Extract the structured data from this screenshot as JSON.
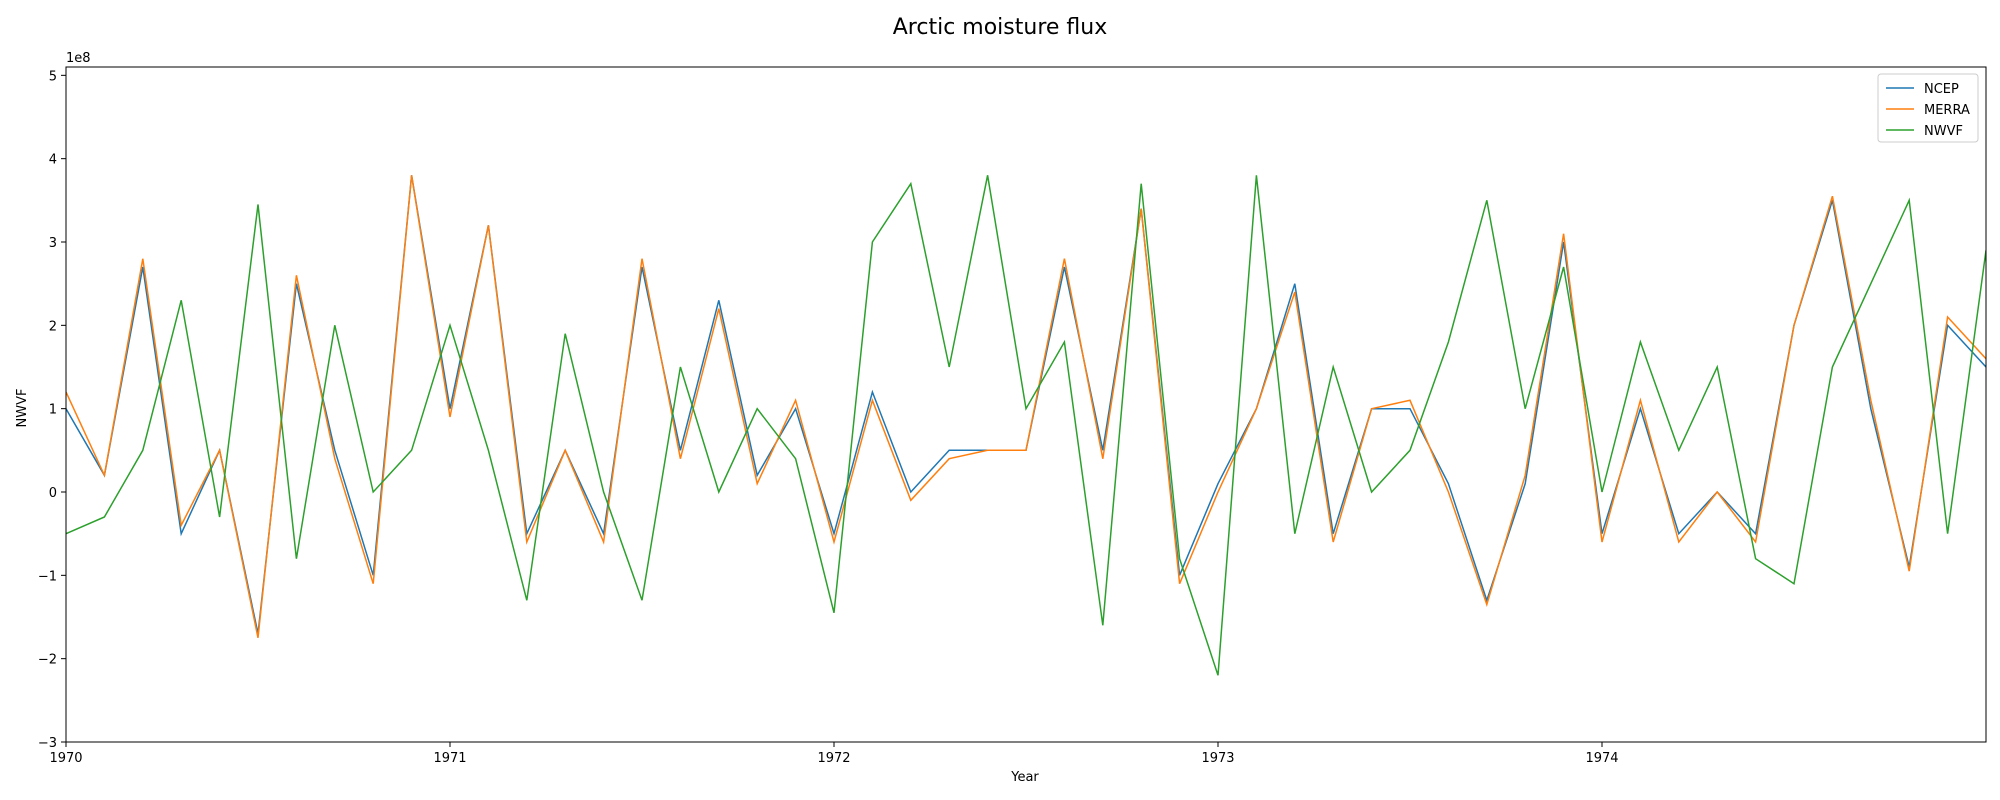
{
  "chart_data": {
    "type": "line",
    "title": "Arctic moisture flux",
    "xlabel": "Year",
    "ylabel": "NWVF",
    "y_offset_label": "1e8",
    "y_multiplier": 100000000,
    "xlim": [
      1970.0,
      1975.0
    ],
    "ylim": [
      -300000000,
      510000000
    ],
    "x_ticks": [
      1970,
      1971,
      1972,
      1973,
      1974
    ],
    "x_tick_labels": [
      "1970",
      "1971",
      "1972",
      "1973",
      "1974"
    ],
    "y_ticks": [
      -3,
      -2,
      -1,
      0,
      1,
      2,
      3,
      4,
      5
    ],
    "y_tick_labels": [
      "−3",
      "−2",
      "−1",
      "0",
      "1",
      "2",
      "3",
      "4",
      "5"
    ],
    "grid": false,
    "legend_position": "top-right",
    "x": [
      1970.0,
      1970.1,
      1970.2,
      1970.3,
      1970.4,
      1970.5,
      1970.6,
      1970.7,
      1970.8,
      1970.9,
      1971.0,
      1971.1,
      1971.2,
      1971.3,
      1971.4,
      1971.5,
      1971.6,
      1971.7,
      1971.8,
      1971.9,
      1972.0,
      1972.1,
      1972.2,
      1972.3,
      1972.4,
      1972.5,
      1972.6,
      1972.7,
      1972.8,
      1972.9,
      1973.0,
      1973.1,
      1973.2,
      1973.3,
      1973.4,
      1973.5,
      1973.6,
      1973.7,
      1973.8,
      1973.9,
      1974.0,
      1974.1,
      1974.2,
      1974.3,
      1974.4,
      1974.5,
      1974.6,
      1974.7,
      1974.8,
      1974.9,
      1975.0
    ],
    "series": [
      {
        "name": "NCEP",
        "color": "#1f77b4",
        "values": [
          100000000,
          20000000,
          270000000,
          -50000000,
          50000000,
          -170000000,
          250000000,
          50000000,
          -100000000,
          380000000,
          100000000,
          320000000,
          -50000000,
          50000000,
          -50000000,
          270000000,
          50000000,
          230000000,
          20000000,
          100000000,
          -50000000,
          120000000,
          0,
          50000000,
          50000000,
          50000000,
          270000000,
          50000000,
          340000000,
          -100000000,
          10000000,
          100000000,
          250000000,
          -50000000,
          100000000,
          100000000,
          10000000,
          -130000000,
          10000000,
          300000000,
          -50000000,
          100000000,
          -50000000,
          0,
          -50000000,
          200000000,
          350000000,
          100000000,
          -90000000,
          200000000,
          150000000
        ]
      },
      {
        "name": "MERRA",
        "color": "#ff7f0e",
        "values": [
          120000000,
          20000000,
          280000000,
          -40000000,
          50000000,
          -175000000,
          260000000,
          40000000,
          -110000000,
          380000000,
          90000000,
          320000000,
          -60000000,
          50000000,
          -60000000,
          280000000,
          40000000,
          220000000,
          10000000,
          110000000,
          -60000000,
          110000000,
          -10000000,
          40000000,
          50000000,
          50000000,
          280000000,
          40000000,
          340000000,
          -110000000,
          0,
          100000000,
          240000000,
          -60000000,
          100000000,
          110000000,
          0,
          -135000000,
          20000000,
          310000000,
          -60000000,
          110000000,
          -60000000,
          0,
          -60000000,
          200000000,
          355000000,
          110000000,
          -95000000,
          210000000,
          160000000
        ]
      },
      {
        "name": "NWVF",
        "color": "#2ca02c",
        "values": [
          -50000000,
          -30000000,
          50000000,
          230000000,
          -30000000,
          345000000,
          -80000000,
          200000000,
          0,
          50000000,
          200000000,
          50000000,
          -130000000,
          190000000,
          0,
          -130000000,
          150000000,
          0,
          100000000,
          40000000,
          -145000000,
          300000000,
          370000000,
          150000000,
          380000000,
          100000000,
          180000000,
          -160000000,
          370000000,
          -80000000,
          -220000000,
          380000000,
          -50000000,
          150000000,
          0,
          50000000,
          180000000,
          350000000,
          100000000,
          270000000,
          0,
          180000000,
          50000000,
          150000000,
          -80000000,
          -110000000,
          150000000,
          250000000,
          350000000,
          -50000000,
          290000000
        ]
      }
    ]
  }
}
